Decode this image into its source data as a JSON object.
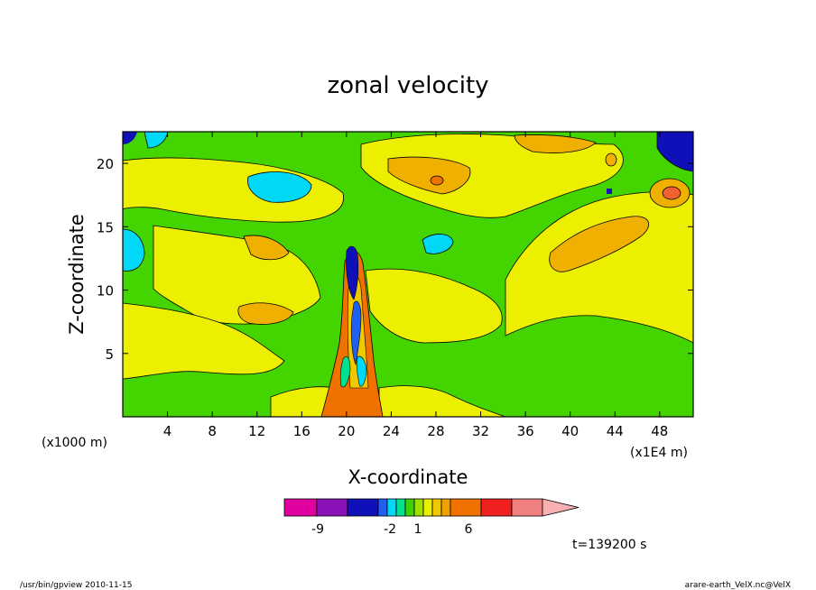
{
  "chart_data": {
    "type": "heatmap",
    "title": "zonal velocity",
    "xlabel": "X-coordinate",
    "ylabel": "Z-coordinate",
    "x_unit_left": "(x1000 m)",
    "x_unit_right": "(x1E4 m)",
    "x_ticks": [
      "4",
      "8",
      "12",
      "16",
      "20",
      "24",
      "28",
      "32",
      "36",
      "40",
      "44",
      "48"
    ],
    "y_ticks": [
      "5",
      "10",
      "15",
      "20"
    ],
    "xlim": [
      0,
      51
    ],
    "ylim": [
      0,
      22.5
    ],
    "time_label": "t=139200 s",
    "colorbar": {
      "colors": [
        "#e000a0",
        "#8a10b8",
        "#1010b8",
        "#2060f0",
        "#00d8f8",
        "#00e090",
        "#40d000",
        "#a0e000",
        "#e8f000",
        "#f0c800",
        "#f0a000",
        "#f07000",
        "#f02020",
        "#f08080",
        "#f8b0b0"
      ],
      "tick_labels": [
        "-9",
        "-2",
        "1",
        "6"
      ]
    },
    "footer_left": "/usr/bin/gpview   2010-11-15",
    "footer_right": "arare-earth_VelX.nc@VelX"
  }
}
